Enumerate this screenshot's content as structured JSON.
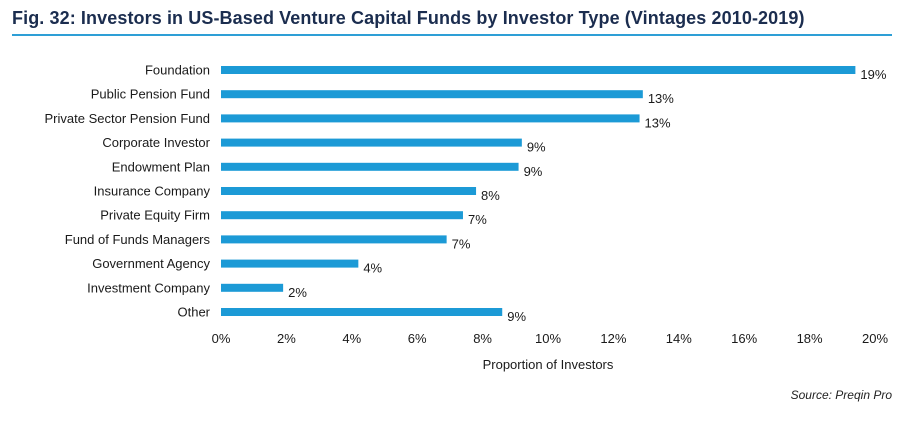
{
  "figure": {
    "title": "Fig. 32: Investors in US-Based Venture Capital Funds by Investor Type (Vintages 2010-2019)",
    "source": "Source: Preqin Pro",
    "accent_color": "#2e9fd6",
    "title_color": "#1b2d4f"
  },
  "chart_data": {
    "type": "bar",
    "orientation": "horizontal",
    "title": "Fig. 32: Investors in US-Based Venture Capital Funds by Investor Type (Vintages 2010-2019)",
    "categories": [
      "Foundation",
      "Public Pension Fund",
      "Private Sector Pension Fund",
      "Corporate Investor",
      "Endowment Plan",
      "Insurance Company",
      "Private Equity Firm",
      "Fund of Funds Managers",
      "Government Agency",
      "Investment Company",
      "Other"
    ],
    "values": [
      19.4,
      12.9,
      12.8,
      9.2,
      9.1,
      7.8,
      7.4,
      6.9,
      4.2,
      1.9,
      8.6
    ],
    "data_labels": [
      "19%",
      "13%",
      "13%",
      "9%",
      "9%",
      "8%",
      "7%",
      "7%",
      "4%",
      "2%",
      "9%"
    ],
    "xlabel": "Proportion of Investors",
    "ylabel": "",
    "xlim": [
      0,
      20
    ],
    "x_ticks": [
      0,
      2,
      4,
      6,
      8,
      10,
      12,
      14,
      16,
      18,
      20
    ],
    "x_tick_labels": [
      "0%",
      "2%",
      "4%",
      "6%",
      "8%",
      "10%",
      "12%",
      "14%",
      "16%",
      "18%",
      "20%"
    ],
    "bar_color": "#1c9ad6",
    "grid": false,
    "legend": "none"
  }
}
